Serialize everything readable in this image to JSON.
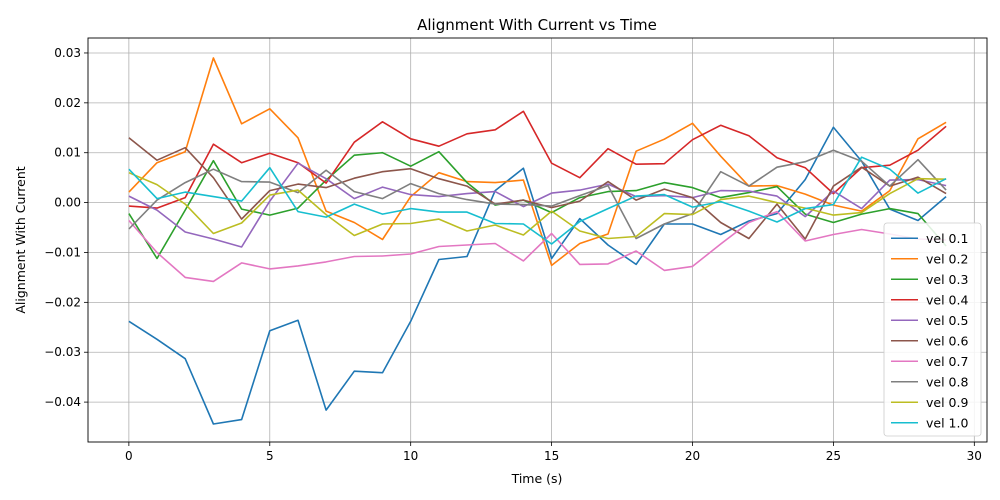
{
  "chart_data": {
    "type": "line",
    "title": "Alignment With Current vs Time",
    "xlabel": "Time (s)",
    "ylabel": "Alignment With Current",
    "xlim": [
      -1.45,
      30.45
    ],
    "ylim": [
      -0.048,
      0.033
    ],
    "xticks": [
      0,
      5,
      10,
      15,
      20,
      25,
      30
    ],
    "xtick_labels": [
      "0",
      "5",
      "10",
      "15",
      "20",
      "25",
      "30"
    ],
    "yticks": [
      -0.04,
      -0.03,
      -0.02,
      -0.01,
      0.0,
      0.01,
      0.02,
      0.03
    ],
    "ytick_labels": [
      "−0.04",
      "−0.03",
      "−0.02",
      "−0.01",
      "0.00",
      "0.01",
      "0.02",
      "0.03"
    ],
    "grid": true,
    "legend_position": "lower-right",
    "x": [
      0,
      1,
      2,
      3,
      4,
      5,
      6,
      7,
      8,
      9,
      10,
      11,
      12,
      13,
      14,
      15,
      16,
      17,
      18,
      19,
      20,
      21,
      22,
      23,
      24,
      25,
      26,
      27,
      28,
      29
    ],
    "series": [
      {
        "name": "vel 0.1",
        "color": "#1f77b4",
        "values": [
          -0.0238,
          -0.0274,
          -0.0313,
          -0.0444,
          -0.0435,
          -0.0257,
          -0.0236,
          -0.0416,
          -0.0338,
          -0.0341,
          -0.0238,
          -0.0114,
          -0.0108,
          0.0024,
          0.0069,
          -0.0112,
          -0.0032,
          -0.0085,
          -0.0124,
          -0.0043,
          -0.0043,
          -0.0064,
          -0.0037,
          -0.0022,
          0.0046,
          0.0151,
          0.0083,
          -0.0013,
          -0.0036,
          0.0012
        ]
      },
      {
        "name": "vel 0.2",
        "color": "#ff7f0e",
        "values": [
          0.0021,
          0.008,
          0.0102,
          0.029,
          0.0158,
          0.0188,
          0.013,
          -0.0017,
          -0.004,
          -0.0074,
          0.0012,
          0.006,
          0.0042,
          0.004,
          0.0045,
          -0.0126,
          -0.0082,
          -0.0063,
          0.0103,
          0.0127,
          0.0159,
          0.0093,
          0.0033,
          0.0034,
          0.0017,
          -0.0005,
          -0.0017,
          0.0024,
          0.0128,
          0.0161
        ]
      },
      {
        "name": "vel 0.3",
        "color": "#2ca02c",
        "values": [
          -0.0022,
          -0.0112,
          -0.0015,
          0.0084,
          -0.0013,
          -0.0025,
          -0.0011,
          0.0045,
          0.0095,
          0.01,
          0.0073,
          0.0102,
          0.004,
          -0.0005,
          0.0005,
          -0.002,
          0.001,
          0.0022,
          0.0024,
          0.004,
          0.003,
          0.001,
          0.002,
          0.0032,
          -0.0023,
          -0.004,
          -0.0023,
          -0.0012,
          -0.0022,
          -0.0087
        ]
      },
      {
        "name": "vel 0.4",
        "color": "#d62728",
        "values": [
          -0.0007,
          -0.0011,
          0.001,
          0.0117,
          0.008,
          0.0099,
          0.008,
          0.0039,
          0.0121,
          0.0162,
          0.0128,
          0.0113,
          0.0138,
          0.0146,
          0.0183,
          0.0079,
          0.005,
          0.0108,
          0.0077,
          0.0078,
          0.0126,
          0.0155,
          0.0134,
          0.009,
          0.007,
          0.0018,
          0.007,
          0.0075,
          0.0105,
          0.0153
        ]
      },
      {
        "name": "vel 0.5",
        "color": "#9467bd",
        "values": [
          0.0013,
          -0.0015,
          -0.0059,
          -0.0073,
          -0.0089,
          0.0003,
          0.0079,
          0.0048,
          0.0008,
          0.0031,
          0.0016,
          0.0012,
          0.0018,
          0.0022,
          -0.0008,
          0.0019,
          0.0025,
          0.0037,
          0.0012,
          0.0014,
          0.001,
          0.0024,
          0.0023,
          0.0013,
          -0.0028,
          0.0023,
          -0.0012,
          0.0045,
          0.0046,
          0.0034
        ]
      },
      {
        "name": "vel 0.6",
        "color": "#8c564b",
        "values": [
          0.013,
          0.0085,
          0.011,
          0.005,
          -0.0033,
          0.0024,
          0.0037,
          0.003,
          0.0049,
          0.0062,
          0.0068,
          0.0048,
          0.0033,
          -0.0003,
          0.0005,
          -0.001,
          0.0003,
          0.0042,
          0.0005,
          0.0027,
          0.001,
          -0.004,
          -0.0072,
          -0.0003,
          -0.0073,
          0.0033,
          0.0071,
          0.0033,
          0.0051,
          0.0018
        ]
      },
      {
        "name": "vel 0.7",
        "color": "#e377c2",
        "values": [
          -0.0036,
          -0.01,
          -0.015,
          -0.0158,
          -0.0121,
          -0.0133,
          -0.0127,
          -0.0119,
          -0.0108,
          -0.0107,
          -0.0103,
          -0.0088,
          -0.0085,
          -0.0082,
          -0.0117,
          -0.0062,
          -0.0124,
          -0.0123,
          -0.0097,
          -0.0136,
          -0.0128,
          -0.0083,
          -0.004,
          -0.0018,
          -0.0077,
          -0.0064,
          -0.0054,
          -0.0063,
          -0.0073,
          -0.0075
        ]
      },
      {
        "name": "vel 0.8",
        "color": "#7f7f7f",
        "values": [
          -0.0053,
          0.0005,
          0.004,
          0.0067,
          0.0042,
          0.0041,
          0.002,
          0.0065,
          0.0022,
          0.0008,
          0.0038,
          0.0018,
          0.0006,
          -0.0003,
          -0.0004,
          -0.0007,
          0.0014,
          0.0034,
          -0.0072,
          -0.0043,
          -0.0022,
          0.0062,
          0.0033,
          0.0071,
          0.0082,
          0.0105,
          0.0083,
          0.0033,
          0.0086,
          0.0025
        ]
      },
      {
        "name": "vel 0.9",
        "color": "#bcbd22",
        "values": [
          0.006,
          0.0036,
          -0.0003,
          -0.0062,
          -0.0041,
          0.0015,
          0.0025,
          -0.0024,
          -0.0066,
          -0.0043,
          -0.0042,
          -0.0033,
          -0.0057,
          -0.0045,
          -0.0065,
          -0.0017,
          -0.0057,
          -0.0072,
          -0.0068,
          -0.0022,
          -0.0024,
          0.0006,
          0.0013,
          0.0,
          -0.0011,
          -0.0025,
          -0.002,
          0.0018,
          0.0048,
          0.0047
        ]
      },
      {
        "name": "vel 1.0",
        "color": "#17becf",
        "values": [
          0.0067,
          0.0008,
          0.0021,
          0.0012,
          0.0003,
          0.007,
          -0.0018,
          -0.0029,
          -0.0003,
          -0.0023,
          -0.0012,
          -0.0019,
          -0.0019,
          -0.0042,
          -0.0043,
          -0.0083,
          -0.0038,
          -0.0012,
          0.0013,
          0.0016,
          -0.0009,
          0.0002,
          -0.0017,
          -0.0039,
          -0.0012,
          -0.0004,
          0.0091,
          0.0067,
          0.0019,
          0.0048
        ]
      }
    ]
  }
}
